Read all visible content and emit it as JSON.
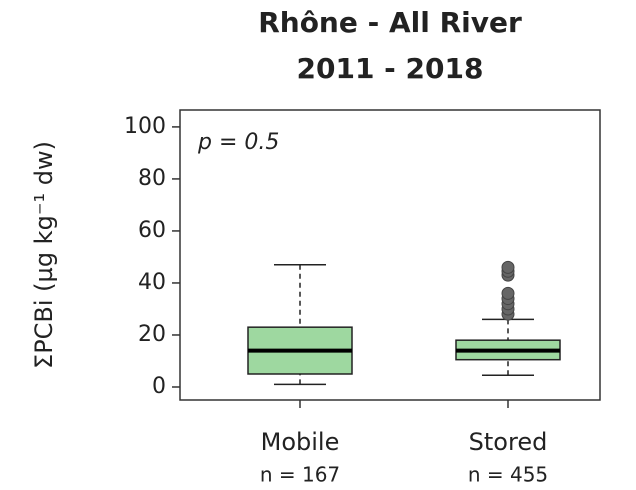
{
  "chart_data": {
    "type": "box",
    "title": [
      "Rhône - All River",
      "2011 - 2018"
    ],
    "ylabel": "ΣPCBi (µg kg⁻¹ dw)",
    "annotation": "p = 0.5",
    "categories": [
      "Mobile",
      "Stored"
    ],
    "n_labels": [
      "n = 167",
      "n = 455"
    ],
    "color": "#9ed8a0",
    "boxes": [
      {
        "whislo": 1,
        "q1": 5,
        "med": 14,
        "q3": 23,
        "whishi": 47,
        "fliers": []
      },
      {
        "whislo": 4.5,
        "q1": 10.5,
        "med": 14,
        "q3": 18,
        "whishi": 26,
        "fliers": [
          28,
          30,
          32,
          34,
          36,
          43,
          44.5,
          46
        ]
      }
    ],
    "ylim": [
      -5,
      106.5
    ],
    "yticks": [
      0,
      20,
      40,
      60,
      80,
      100
    ]
  }
}
